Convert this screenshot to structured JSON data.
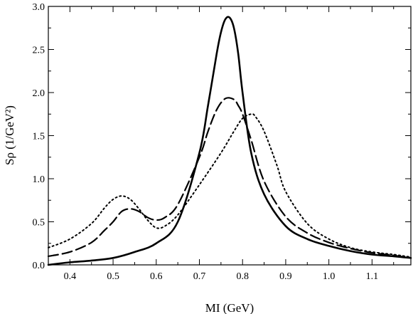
{
  "chart_data": {
    "type": "line",
    "title": "",
    "xlabel": "MI (GeV)",
    "ylabel": "Sρ (1/GeV²)",
    "xlim": [
      0.35,
      1.19
    ],
    "ylim": [
      0.0,
      3.0
    ],
    "xticks": [
      0.4,
      0.5,
      0.6,
      0.7,
      0.8,
      0.9,
      1.0,
      1.1
    ],
    "xtick_labels": [
      "0.4",
      "0.5",
      "0.6",
      "0.7",
      "0.8",
      "0.9",
      "1.0",
      "1.1"
    ],
    "yticks": [
      0.0,
      0.5,
      1.0,
      1.5,
      2.0,
      2.5,
      3.0
    ],
    "ytick_labels": [
      "0.0",
      "0.5",
      "1.0",
      "1.5",
      "2.0",
      "2.5",
      "3.0"
    ],
    "grid": false,
    "legend": "none",
    "series": [
      {
        "style": "solid",
        "color": "#000000",
        "x": [
          0.35,
          0.4,
          0.45,
          0.5,
          0.55,
          0.6,
          0.65,
          0.7,
          0.72,
          0.74,
          0.75,
          0.76,
          0.77,
          0.78,
          0.79,
          0.8,
          0.82,
          0.85,
          0.9,
          0.95,
          1.0,
          1.05,
          1.1,
          1.15,
          1.19
        ],
        "y": [
          0.0,
          0.03,
          0.05,
          0.08,
          0.15,
          0.25,
          0.5,
          1.3,
          1.85,
          2.45,
          2.7,
          2.85,
          2.87,
          2.75,
          2.45,
          2.0,
          1.3,
          0.82,
          0.45,
          0.3,
          0.22,
          0.16,
          0.12,
          0.1,
          0.08
        ]
      },
      {
        "style": "dashed",
        "color": "#000000",
        "x": [
          0.35,
          0.4,
          0.45,
          0.48,
          0.5,
          0.52,
          0.54,
          0.56,
          0.58,
          0.6,
          0.62,
          0.65,
          0.7,
          0.72,
          0.74,
          0.76,
          0.78,
          0.79,
          0.8,
          0.82,
          0.85,
          0.9,
          0.95,
          1.0,
          1.05,
          1.1,
          1.15,
          1.19
        ],
        "y": [
          0.1,
          0.15,
          0.26,
          0.4,
          0.5,
          0.62,
          0.65,
          0.62,
          0.55,
          0.52,
          0.55,
          0.7,
          1.25,
          1.55,
          1.8,
          1.93,
          1.92,
          1.85,
          1.75,
          1.45,
          0.97,
          0.56,
          0.37,
          0.26,
          0.19,
          0.14,
          0.11,
          0.08
        ]
      },
      {
        "style": "dotted",
        "color": "#000000",
        "x": [
          0.35,
          0.4,
          0.45,
          0.48,
          0.5,
          0.52,
          0.54,
          0.56,
          0.58,
          0.6,
          0.62,
          0.65,
          0.7,
          0.75,
          0.78,
          0.8,
          0.82,
          0.83,
          0.85,
          0.88,
          0.9,
          0.95,
          1.0,
          1.05,
          1.1,
          1.15,
          1.19
        ],
        "y": [
          0.2,
          0.3,
          0.48,
          0.66,
          0.76,
          0.8,
          0.76,
          0.65,
          0.52,
          0.43,
          0.45,
          0.58,
          0.93,
          1.3,
          1.55,
          1.7,
          1.75,
          1.72,
          1.55,
          1.15,
          0.85,
          0.48,
          0.3,
          0.2,
          0.15,
          0.12,
          0.09
        ]
      }
    ]
  }
}
